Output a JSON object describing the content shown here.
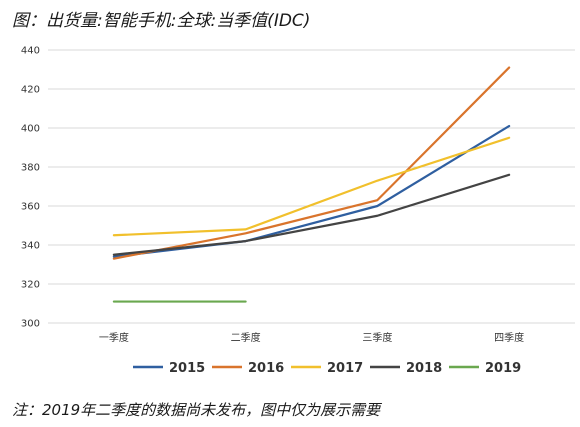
{
  "title": "图：出货量:智能手机:全球:当季值(IDC)",
  "note": "注：2019年二季度的数据尚未发布，图中仅为展示需要",
  "chart_data": {
    "type": "line",
    "categories": [
      "一季度",
      "二季度",
      "三季度",
      "四季度"
    ],
    "ylim": [
      300,
      440
    ],
    "yticks": [
      300,
      320,
      340,
      360,
      380,
      400,
      420,
      440
    ],
    "grid": true,
    "legend_position": "bottom",
    "series": [
      {
        "name": "2015",
        "color": "#2f5fa0",
        "values": [
          334,
          342,
          360,
          401
        ]
      },
      {
        "name": "2016",
        "color": "#d9742c",
        "values": [
          333,
          346,
          363,
          431
        ]
      },
      {
        "name": "2017",
        "color": "#f1c02c",
        "values": [
          345,
          348,
          373,
          395
        ]
      },
      {
        "name": "2018",
        "color": "#444444",
        "values": [
          335,
          342,
          355,
          376
        ]
      },
      {
        "name": "2019",
        "color": "#6aa84f",
        "values": [
          311,
          311,
          null,
          null
        ]
      }
    ]
  }
}
